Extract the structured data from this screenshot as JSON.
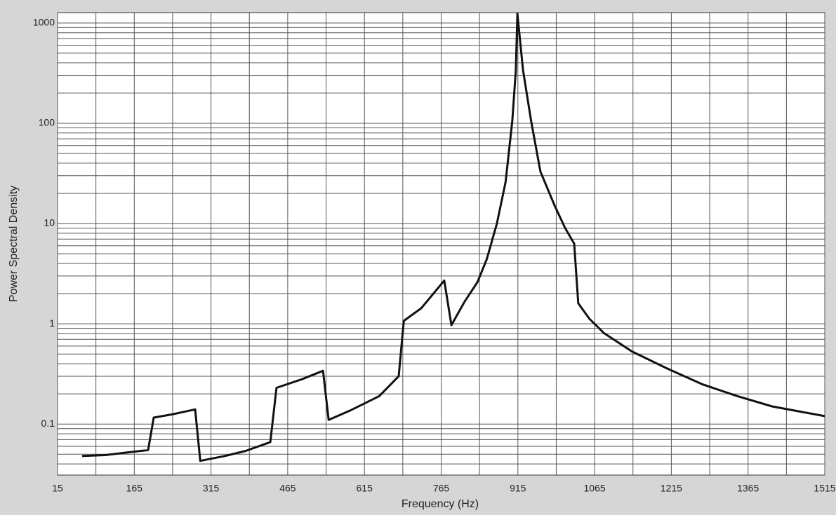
{
  "chart_data": {
    "type": "line",
    "x_label": "Frequency (Hz)",
    "y_label": "Power Spectral Density",
    "x": [
      63,
      108,
      163,
      192,
      203,
      239,
      284,
      294,
      342,
      383,
      431,
      443,
      493,
      534,
      545,
      589,
      644,
      682,
      692,
      726,
      771,
      785,
      811,
      836,
      854,
      874,
      891,
      904,
      911,
      914,
      925,
      941,
      959,
      987,
      1007,
      1025,
      1033,
      1055,
      1083,
      1138,
      1206,
      1275,
      1344,
      1412,
      1515
    ],
    "series": [
      {
        "color": "#111111",
        "values": [
          0.048,
          0.049,
          0.053,
          0.055,
          0.116,
          0.125,
          0.14,
          0.043,
          0.048,
          0.054,
          0.066,
          0.23,
          0.28,
          0.34,
          0.11,
          0.138,
          0.19,
          0.3,
          1.07,
          1.43,
          2.7,
          0.97,
          1.67,
          2.6,
          4.4,
          10,
          26,
          105,
          340,
          1240,
          340,
          105,
          33,
          15,
          9.1,
          6.3,
          1.6,
          1.12,
          0.81,
          0.53,
          0.36,
          0.25,
          0.19,
          0.15,
          0.12
        ]
      }
    ],
    "xlim": [
      15,
      1515
    ],
    "xticks": [
      15,
      165,
      315,
      465,
      615,
      765,
      915,
      1065,
      1215,
      1365,
      1515
    ],
    "ylim": [
      0.031,
      1270
    ],
    "yticks": [
      0.1,
      1,
      10,
      100,
      1000
    ],
    "ylog": true,
    "grid": true
  }
}
